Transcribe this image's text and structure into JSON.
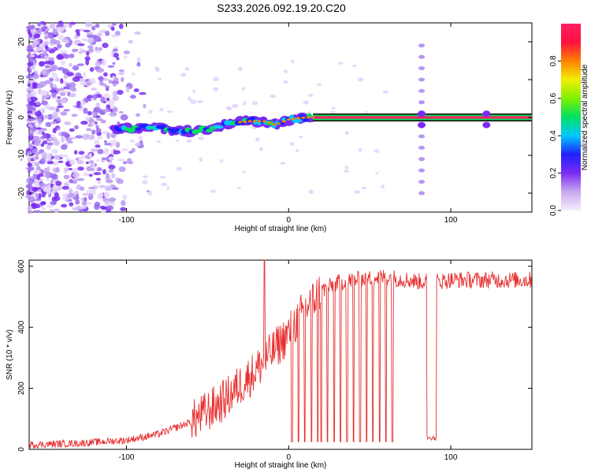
{
  "chart_data": [
    {
      "type": "heatmap",
      "title": "S233.2026.092.19.20.C20",
      "xlabel": "Height of straight line (km)",
      "ylabel": "Frequency (Hz)",
      "xlim": [
        -160,
        150
      ],
      "ylim": [
        -25,
        25
      ],
      "xticks": [
        -100,
        0,
        100
      ],
      "yticks": [
        -20,
        -10,
        0,
        10,
        20
      ],
      "colorbar": {
        "label": "Normalized spectral amplitude",
        "range": [
          0.0,
          1.0
        ],
        "ticks": [
          0.0,
          0.2,
          0.4,
          0.6,
          0.8
        ],
        "colors": [
          "#f5eefc",
          "#c8a8f0",
          "#7a2cf2",
          "#2020ff",
          "#00c8ff",
          "#00e060",
          "#80f000",
          "#f0f000",
          "#ff8000",
          "#ff1040",
          "#ff2060"
        ]
      },
      "ridge": {
        "heights": [
          -108,
          -95,
          -85,
          -75,
          -65,
          -55,
          -45,
          -35,
          -25,
          -15,
          -8,
          0,
          10,
          20,
          40,
          60,
          80,
          100,
          120,
          150
        ],
        "frequency": [
          -3,
          -3,
          -2.5,
          -3,
          -3.5,
          -3.5,
          -3,
          -1.5,
          -1,
          -1,
          -2,
          -0.5,
          0,
          0,
          0,
          0,
          0,
          0,
          0,
          0
        ]
      },
      "noise_region_end": -105,
      "vertical_lines": [
        {
          "height": 82,
          "freq_range": [
            -20,
            20
          ]
        },
        {
          "height": 122,
          "freq_range": [
            -2,
            2
          ]
        }
      ]
    },
    {
      "type": "line",
      "xlabel": "Height of straight line (km)",
      "ylabel": "SNR (10 * v/v)",
      "xlim": [
        -160,
        150
      ],
      "ylim": [
        0,
        620
      ],
      "xticks": [
        -100,
        0,
        100
      ],
      "yticks": [
        0,
        200,
        400,
        600
      ],
      "series": [
        {
          "name": "SNR",
          "color": "#e83030",
          "envelope_x": [
            -160,
            -130,
            -100,
            -80,
            -60,
            -40,
            -20,
            0,
            10,
            20,
            30,
            40,
            60,
            80,
            90,
            100,
            150
          ],
          "envelope_y": [
            15,
            20,
            30,
            50,
            90,
            160,
            260,
            380,
            460,
            520,
            545,
            555,
            565,
            550,
            550,
            555,
            555
          ],
          "spike_up": {
            "height": -15,
            "value": 620
          },
          "dropouts": [
            2,
            6,
            10,
            14,
            18,
            20,
            24,
            28,
            32,
            36,
            40,
            44,
            48,
            52,
            56,
            60,
            64
          ],
          "dropout_value": 25,
          "gap": {
            "range": [
              85,
              91
            ],
            "value": 30
          }
        }
      ]
    }
  ]
}
